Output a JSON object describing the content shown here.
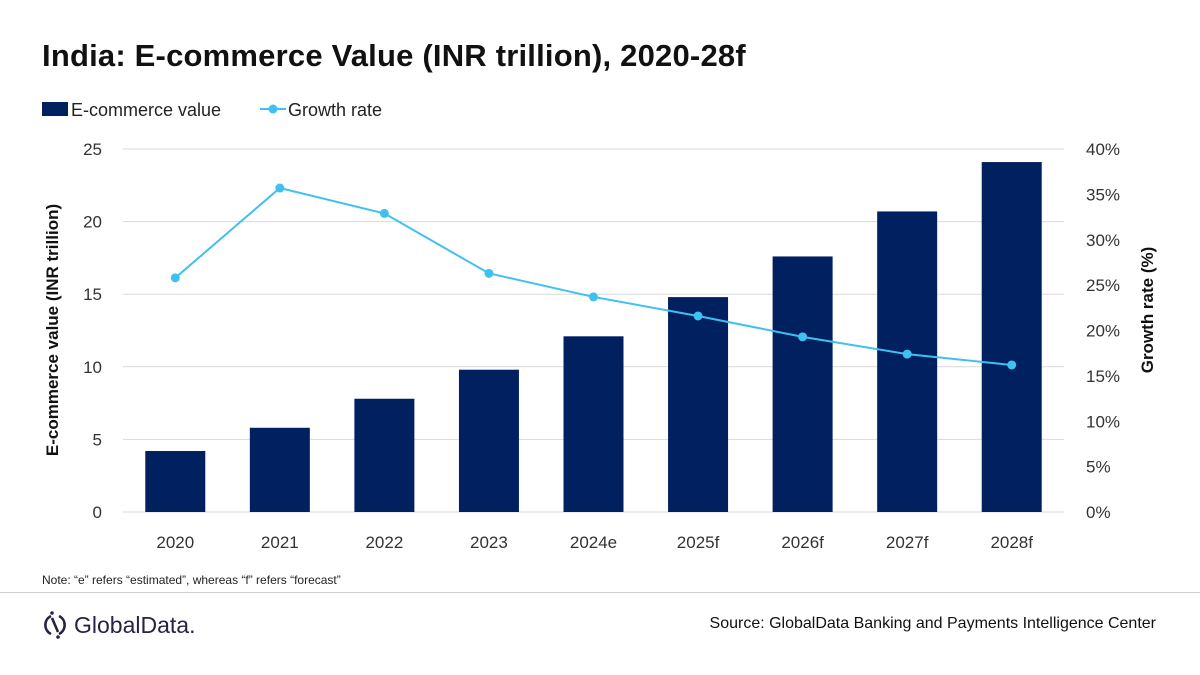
{
  "title": "India: E-commerce Value (INR trillion), 2020-28f",
  "note": "Note: “e” refers “estimated”, whereas “f” refers “forecast”",
  "source": "Source: GlobalData Banking and Payments Intelligence Center",
  "logo_text": "GlobalData.",
  "chart_data": {
    "type": "bar+line",
    "title": "India: E-commerce Value (INR trillion), 2020-28f",
    "categories": [
      "2020",
      "2021",
      "2022",
      "2023",
      "2024e",
      "2025f",
      "2026f",
      "2027f",
      "2028f"
    ],
    "series": [
      {
        "name": "E-commerce value",
        "type": "bar",
        "axis": "left",
        "color": "#002060",
        "values": [
          4.2,
          5.8,
          7.8,
          9.8,
          12.1,
          14.8,
          17.6,
          20.7,
          24.1
        ]
      },
      {
        "name": "Growth rate",
        "type": "line",
        "axis": "right",
        "color": "#3fc1f0",
        "values": [
          25.8,
          35.7,
          32.9,
          26.3,
          23.7,
          21.6,
          19.3,
          17.4,
          16.2
        ]
      }
    ],
    "ylabel": "E-commerce value (INR trillion)",
    "y2label": "Growth rate (%)",
    "ylim": [
      0,
      25
    ],
    "yticks": [
      "0",
      "5",
      "10",
      "15",
      "20",
      "25"
    ],
    "y2lim": [
      0,
      40
    ],
    "y2ticks": [
      "0%",
      "5%",
      "10%",
      "15%",
      "20%",
      "25%",
      "30%",
      "35%",
      "40%"
    ],
    "grid": true,
    "legend": "top-left"
  }
}
